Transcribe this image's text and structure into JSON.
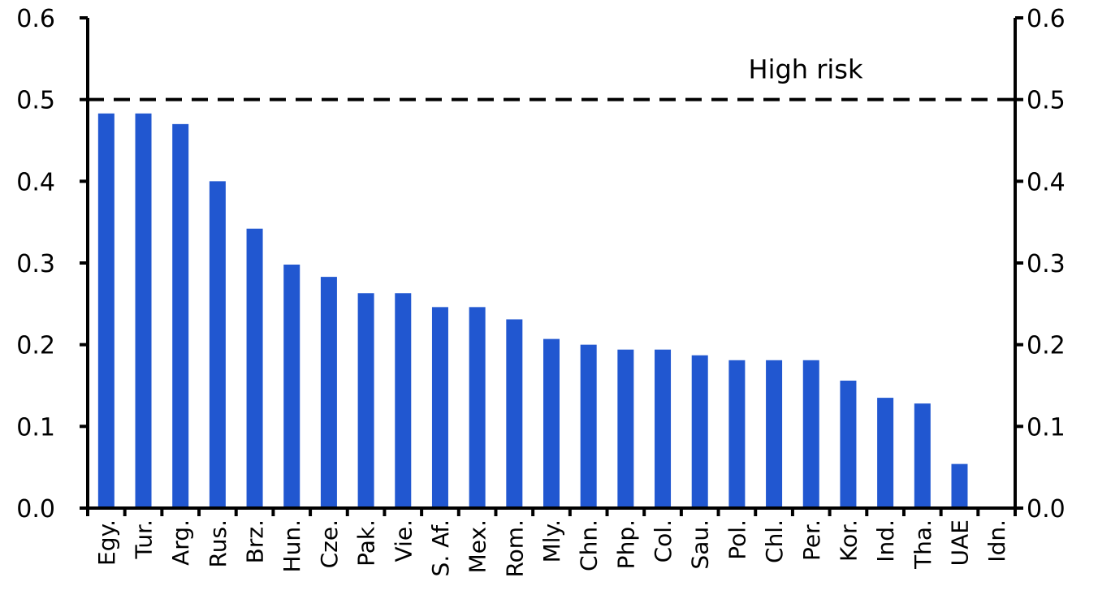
{
  "chart_data": {
    "type": "bar",
    "categories": [
      "Egy.",
      "Tur.",
      "Arg.",
      "Rus.",
      "Brz.",
      "Hun.",
      "Cze.",
      "Pak.",
      "Vie.",
      "S. Af.",
      "Mex.",
      "Rom.",
      "Mly.",
      "Chn.",
      "Php.",
      "Col.",
      "Sau.",
      "Pol.",
      "Chl.",
      "Per.",
      "Kor.",
      "Ind.",
      "Tha.",
      "UAE",
      "Idn."
    ],
    "values": [
      0.483,
      0.483,
      0.47,
      0.4,
      0.342,
      0.298,
      0.283,
      0.263,
      0.263,
      0.246,
      0.246,
      0.231,
      0.207,
      0.2,
      0.194,
      0.194,
      0.187,
      0.181,
      0.181,
      0.181,
      0.156,
      0.135,
      0.128,
      0.054,
      0.0
    ],
    "ylim": [
      0.0,
      0.6
    ],
    "left_ticks": [
      "0.0",
      "0.1",
      "0.2",
      "0.3",
      "0.4",
      "0.5",
      "0.6"
    ],
    "right_ticks": [
      "0.0",
      "0.1",
      "0.2",
      "0.3",
      "0.4",
      "0.5",
      "0.6"
    ],
    "tick_values": [
      0.0,
      0.1,
      0.2,
      0.3,
      0.4,
      0.5,
      0.6
    ],
    "threshold": {
      "value": 0.5,
      "label": "High risk",
      "style": "dashed"
    },
    "bar_color": "#2157d0",
    "grid": false,
    "legend": "none",
    "title": "",
    "xlabel": "",
    "ylabel": ""
  }
}
